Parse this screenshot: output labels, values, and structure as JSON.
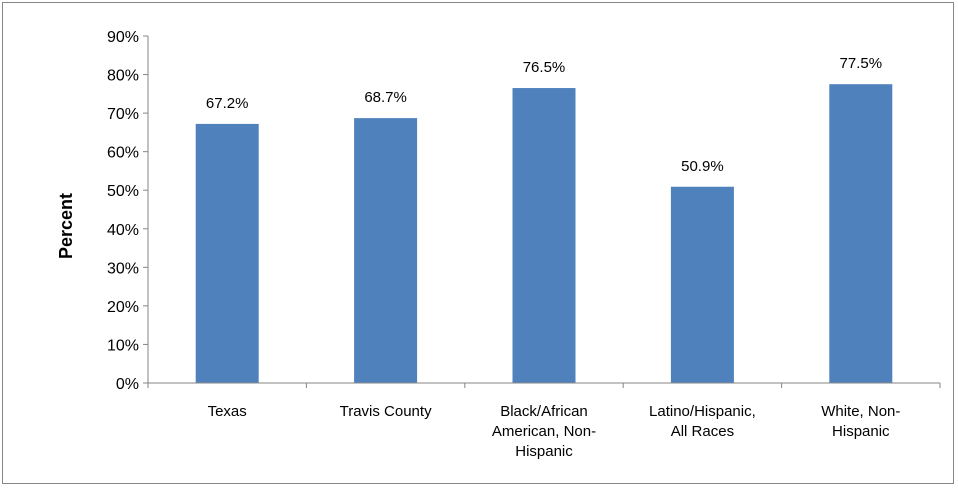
{
  "chart_data": {
    "type": "bar",
    "title": "",
    "xlabel": "",
    "ylabel": "Percent",
    "ylim": [
      0,
      90
    ],
    "ytick_step": 10,
    "ytick_suffix": "%",
    "grid": false,
    "legend": "none",
    "bar_color": "#4F81BD",
    "categories": [
      [
        "Texas"
      ],
      [
        "Travis County"
      ],
      [
        "Black/African",
        "American, Non-",
        "Hispanic"
      ],
      [
        "Latino/Hispanic,",
        "All Races"
      ],
      [
        "White, Non-",
        "Hispanic"
      ]
    ],
    "values": [
      67.2,
      68.7,
      76.5,
      50.9,
      77.5
    ],
    "data_labels": [
      "67.2%",
      "68.7%",
      "76.5%",
      "50.9%",
      "77.5%"
    ]
  }
}
